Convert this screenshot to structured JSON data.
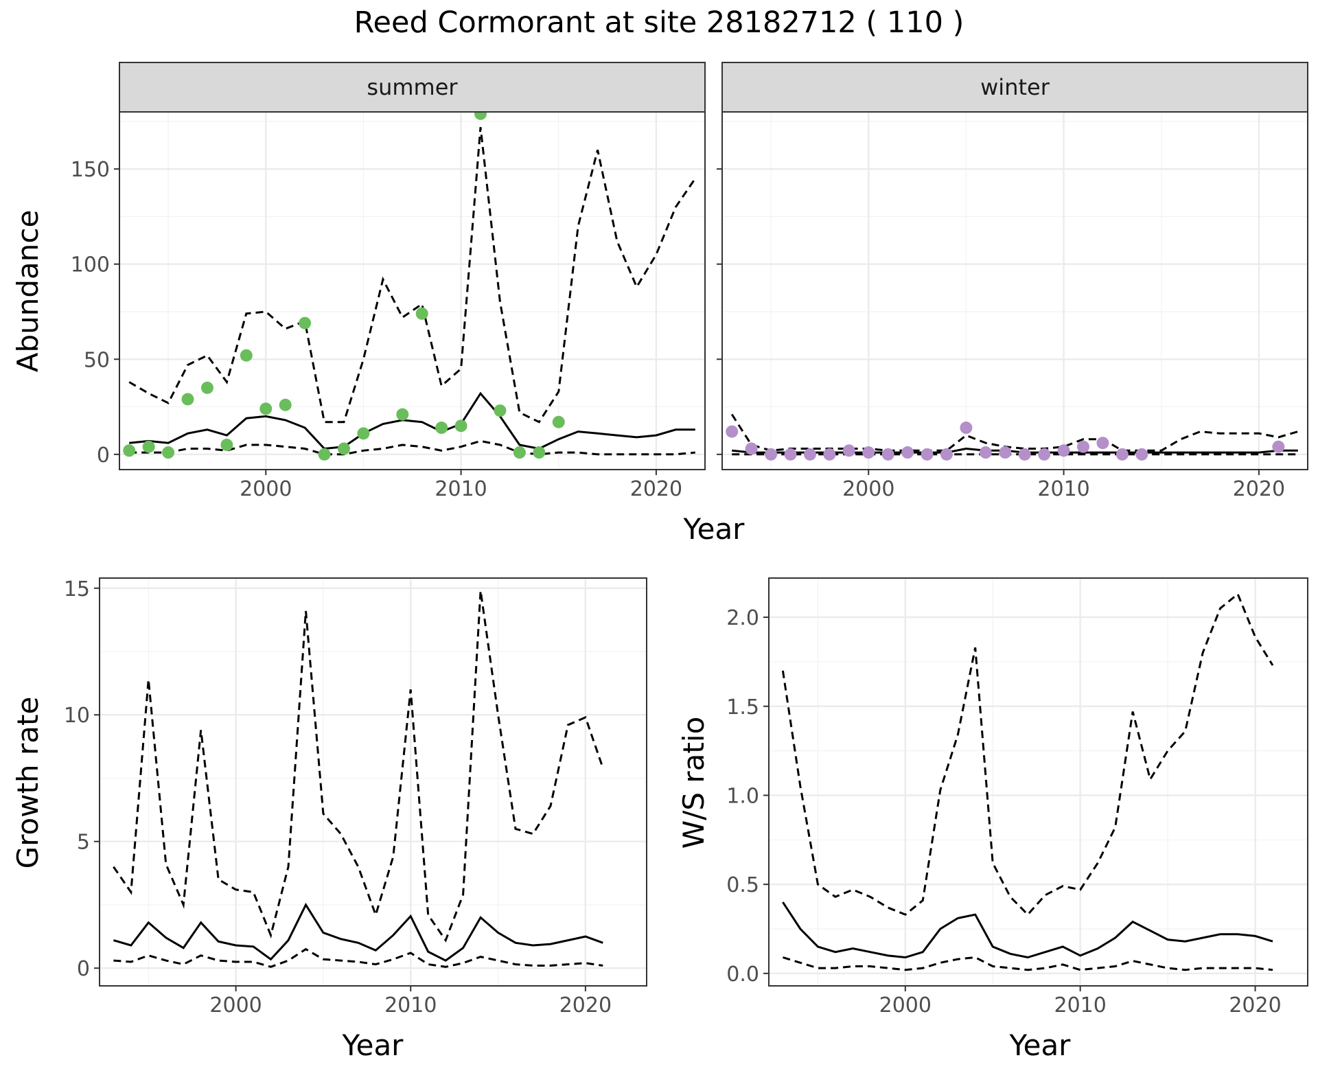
{
  "title": "Reed Cormorant at site 28182712 ( 110 )",
  "colors": {
    "summer_points": "#6ABD5B",
    "winter_points": "#B48FC9",
    "lines": "#000000"
  },
  "chart_data": [
    {
      "type": "line",
      "panel": "abundance",
      "facets": [
        "summer",
        "winter"
      ],
      "xlabel": "Year",
      "ylabel": "Abundance",
      "xlim": [
        1992.5,
        2022.5
      ],
      "ylim": [
        -8,
        180
      ],
      "xticks": [
        2000,
        2010,
        2020
      ],
      "yticks": [
        0,
        50,
        100,
        150
      ],
      "x": [
        1993,
        1994,
        1995,
        1996,
        1997,
        1998,
        1999,
        2000,
        2001,
        2002,
        2003,
        2004,
        2005,
        2006,
        2007,
        2008,
        2009,
        2010,
        2011,
        2012,
        2013,
        2014,
        2015,
        2016,
        2017,
        2018,
        2019,
        2020,
        2021,
        2022
      ],
      "summer": {
        "mean": [
          6,
          7,
          6,
          11,
          13,
          10,
          19,
          20,
          18,
          14,
          3,
          4,
          11,
          16,
          18,
          17,
          12,
          16,
          32,
          20,
          5,
          3,
          8,
          12,
          11,
          10,
          9,
          10,
          13,
          13
        ],
        "upper": [
          38,
          32,
          27,
          47,
          52,
          38,
          74,
          75,
          66,
          70,
          17,
          17,
          50,
          92,
          72,
          79,
          36,
          45,
          172,
          80,
          22,
          17,
          33,
          120,
          160,
          112,
          88,
          105,
          130,
          145
        ],
        "lower": [
          1,
          1,
          1,
          3,
          3,
          2,
          5,
          5,
          4,
          3,
          0,
          0,
          2,
          3,
          5,
          4,
          2,
          4,
          7,
          5,
          1,
          0,
          1,
          1,
          0,
          0,
          0,
          0,
          0,
          1
        ],
        "observed_x": [
          1993,
          1994,
          1995,
          1996,
          1997,
          1998,
          1999,
          2000,
          2001,
          2002,
          2003,
          2004,
          2005,
          2007,
          2008,
          2009,
          2010,
          2011,
          2012,
          2013,
          2014,
          2015
        ],
        "observed_y": [
          2,
          4,
          1,
          29,
          35,
          5,
          52,
          24,
          26,
          69,
          0,
          3,
          11,
          21,
          74,
          14,
          15,
          179,
          23,
          1,
          1,
          17
        ]
      },
      "winter": {
        "mean": [
          2,
          1,
          1,
          1,
          1,
          1,
          1,
          1,
          1,
          1,
          1,
          1,
          3,
          2,
          2,
          1,
          1,
          1,
          1,
          1,
          1,
          1,
          1,
          1,
          1,
          1,
          1,
          1,
          2,
          2
        ],
        "upper": [
          21,
          5,
          2,
          3,
          3,
          3,
          3,
          3,
          2,
          2,
          2,
          2,
          10,
          6,
          4,
          3,
          3,
          4,
          8,
          8,
          2,
          2,
          2,
          8,
          12,
          11,
          11,
          11,
          9,
          12
        ],
        "lower": [
          0,
          0,
          0,
          0,
          0,
          0,
          0,
          0,
          0,
          0,
          0,
          0,
          0,
          0,
          0,
          0,
          0,
          0,
          0,
          0,
          0,
          0,
          0,
          0,
          0,
          0,
          0,
          0,
          0,
          0
        ],
        "observed_x": [
          1993,
          1994,
          1995,
          1996,
          1997,
          1998,
          1999,
          2000,
          2001,
          2002,
          2003,
          2004,
          2005,
          2006,
          2007,
          2008,
          2009,
          2010,
          2011,
          2012,
          2013,
          2014,
          2021
        ],
        "observed_y": [
          12,
          3,
          0,
          0,
          0,
          0,
          2,
          1,
          0,
          1,
          0,
          0,
          14,
          1,
          1,
          0,
          0,
          2,
          4,
          6,
          0,
          0,
          4
        ]
      }
    },
    {
      "type": "line",
      "panel": "growth",
      "xlabel": "Year",
      "ylabel": "Growth rate",
      "xlim": [
        1992.2,
        2023.5
      ],
      "ylim": [
        -0.7,
        15.4
      ],
      "xticks": [
        2000,
        2010,
        2020
      ],
      "yticks": [
        0,
        5,
        10,
        15
      ],
      "x": [
        1993,
        1994,
        1995,
        1996,
        1997,
        1998,
        1999,
        2000,
        2001,
        2002,
        2003,
        2004,
        2005,
        2006,
        2007,
        2008,
        2009,
        2010,
        2011,
        2012,
        2013,
        2014,
        2015,
        2016,
        2017,
        2018,
        2019,
        2020,
        2021
      ],
      "mean": [
        1.1,
        0.9,
        1.8,
        1.2,
        0.8,
        1.8,
        1.05,
        0.9,
        0.85,
        0.35,
        1.1,
        2.5,
        1.4,
        1.15,
        1.0,
        0.7,
        1.3,
        2.05,
        0.65,
        0.3,
        0.8,
        2.0,
        1.4,
        1.0,
        0.9,
        0.95,
        1.1,
        1.25,
        1.0
      ],
      "upper": [
        4.0,
        3.0,
        11.4,
        4.1,
        2.5,
        9.4,
        3.5,
        3.1,
        3.0,
        1.3,
        4.0,
        14.1,
        6.1,
        5.3,
        4.0,
        2.1,
        4.4,
        11.0,
        2.1,
        1.1,
        2.9,
        14.9,
        10.0,
        5.5,
        5.3,
        6.4,
        9.6,
        9.9,
        7.9
      ],
      "lower": [
        0.3,
        0.25,
        0.5,
        0.3,
        0.15,
        0.5,
        0.3,
        0.25,
        0.25,
        0.05,
        0.3,
        0.75,
        0.35,
        0.3,
        0.25,
        0.15,
        0.35,
        0.6,
        0.15,
        0.05,
        0.2,
        0.45,
        0.3,
        0.15,
        0.1,
        0.1,
        0.15,
        0.2,
        0.1
      ]
    },
    {
      "type": "line",
      "panel": "ratio",
      "xlabel": "Year",
      "ylabel": "W/S ratio",
      "xlim": [
        1992.2,
        2023.0
      ],
      "ylim": [
        -0.07,
        2.22
      ],
      "xticks": [
        2000,
        2010,
        2020
      ],
      "yticks": [
        0.0,
        0.5,
        1.0,
        1.5,
        2.0
      ],
      "ytick_labels": [
        "0.0",
        "0.5",
        "1.0",
        "1.5",
        "2.0"
      ],
      "x": [
        1993,
        1994,
        1995,
        1996,
        1997,
        1998,
        1999,
        2000,
        2001,
        2002,
        2003,
        2004,
        2005,
        2006,
        2007,
        2008,
        2009,
        2010,
        2011,
        2012,
        2013,
        2014,
        2015,
        2016,
        2017,
        2018,
        2019,
        2020,
        2021
      ],
      "mean": [
        0.4,
        0.25,
        0.15,
        0.12,
        0.14,
        0.12,
        0.1,
        0.09,
        0.12,
        0.25,
        0.31,
        0.33,
        0.15,
        0.11,
        0.09,
        0.12,
        0.15,
        0.1,
        0.14,
        0.2,
        0.29,
        0.24,
        0.19,
        0.18,
        0.2,
        0.22,
        0.22,
        0.21,
        0.18
      ],
      "upper": [
        1.7,
        1.05,
        0.5,
        0.43,
        0.47,
        0.43,
        0.37,
        0.33,
        0.41,
        1.03,
        1.34,
        1.83,
        0.62,
        0.43,
        0.33,
        0.44,
        0.49,
        0.47,
        0.62,
        0.82,
        1.47,
        1.09,
        1.25,
        1.36,
        1.8,
        2.05,
        2.13,
        1.89,
        1.73
      ],
      "lower": [
        0.09,
        0.06,
        0.03,
        0.03,
        0.04,
        0.04,
        0.03,
        0.02,
        0.03,
        0.06,
        0.08,
        0.09,
        0.04,
        0.03,
        0.02,
        0.03,
        0.05,
        0.02,
        0.03,
        0.04,
        0.07,
        0.05,
        0.03,
        0.02,
        0.03,
        0.03,
        0.03,
        0.03,
        0.02
      ]
    }
  ]
}
